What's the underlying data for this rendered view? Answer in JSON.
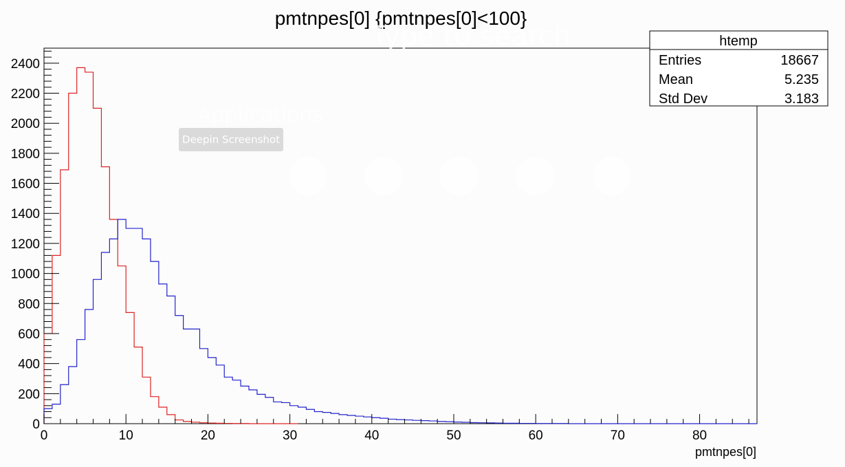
{
  "overlay": {
    "search_text": "Type to search",
    "apps_heading": "Applications",
    "tooltip": "Deepin Screenshot"
  },
  "stats": {
    "title": "htemp",
    "rows": [
      {
        "label": "Entries",
        "value": "18667"
      },
      {
        "label": "Mean",
        "value": "5.235"
      },
      {
        "label": "Std Dev",
        "value": "3.183"
      }
    ]
  },
  "chart_data": {
    "type": "histogram",
    "title": "pmtnpes[0] {pmtnpes[0]<100}",
    "xlabel": "pmtnpes[0]",
    "ylabel": "",
    "xlim": [
      0,
      87
    ],
    "ylim": [
      0,
      2500
    ],
    "bin_width": 1,
    "x_ticks": [
      0,
      10,
      20,
      30,
      40,
      50,
      60,
      70,
      80
    ],
    "y_ticks": [
      0,
      200,
      400,
      600,
      800,
      1000,
      1200,
      1400,
      1600,
      1800,
      2000,
      2200,
      2400
    ],
    "grid": false,
    "series": [
      {
        "color": "#dd2222",
        "bin_edges_start": 0,
        "counts": [
          600,
          1120,
          1690,
          2200,
          2370,
          2340,
          2100,
          1710,
          1360,
          1050,
          740,
          510,
          310,
          180,
          110,
          60,
          25,
          15,
          10,
          6,
          4,
          3,
          2,
          1,
          1,
          0,
          0,
          0,
          0,
          0,
          0
        ]
      },
      {
        "color": "#2222cc",
        "bin_edges_start": 0,
        "counts": [
          100,
          130,
          260,
          380,
          560,
          760,
          960,
          1140,
          1230,
          1360,
          1300,
          1300,
          1230,
          1080,
          930,
          850,
          720,
          630,
          630,
          500,
          440,
          390,
          310,
          290,
          250,
          225,
          195,
          175,
          145,
          140,
          120,
          110,
          95,
          80,
          75,
          68,
          60,
          55,
          50,
          45,
          40,
          36,
          30,
          27,
          25,
          22,
          20,
          18,
          15,
          13,
          11,
          9,
          7,
          6,
          5,
          4,
          3,
          3,
          2,
          2,
          1,
          1,
          1,
          1,
          0,
          0,
          0,
          0,
          0,
          0,
          0,
          0,
          0,
          0,
          0,
          0,
          0,
          0,
          0,
          0,
          0,
          0,
          0,
          0,
          0,
          0,
          0
        ]
      }
    ]
  }
}
